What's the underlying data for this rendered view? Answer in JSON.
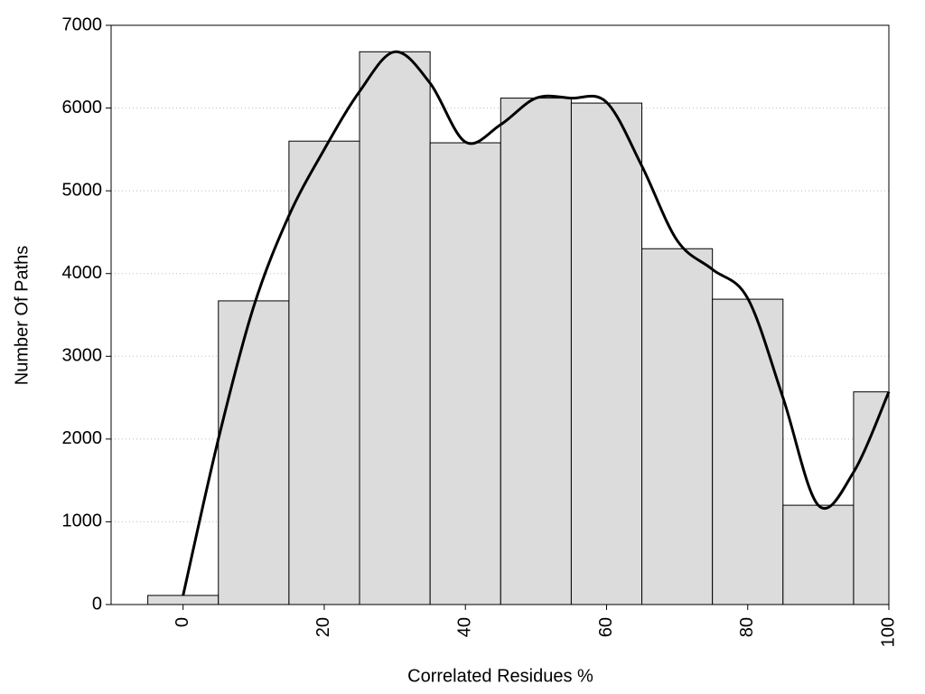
{
  "chart_data": {
    "type": "histogram",
    "xlabel": "Correlated Residues %",
    "ylabel": "Number Of Paths",
    "bins": [
      -5,
      5,
      15,
      25,
      35,
      45,
      55,
      65,
      75,
      85,
      95,
      100
    ],
    "values": [
      110,
      3670,
      5600,
      6680,
      5580,
      6120,
      6060,
      4300,
      3690,
      1200,
      2570
    ],
    "color": "#dcdcdc",
    "curve": {
      "x": [
        0,
        5,
        10,
        15,
        20,
        25,
        30,
        35,
        40,
        45,
        50,
        55,
        60,
        65,
        70,
        75,
        80,
        85,
        90,
        95,
        100
      ],
      "values": [
        110,
        2000,
        3600,
        4700,
        5500,
        6200,
        6680,
        6300,
        5590,
        5800,
        6120,
        6120,
        6070,
        5300,
        4400,
        4050,
        3700,
        2500,
        1200,
        1600,
        2570
      ],
      "color": "#000000"
    },
    "xlim": [
      -10.2,
      100
    ],
    "xticks": [
      0,
      20,
      40,
      60,
      80,
      100
    ],
    "ylim": [
      0,
      7000
    ],
    "yticks": [
      0,
      1000,
      2000,
      3000,
      4000,
      5000,
      6000,
      7000
    ],
    "grid": true
  }
}
